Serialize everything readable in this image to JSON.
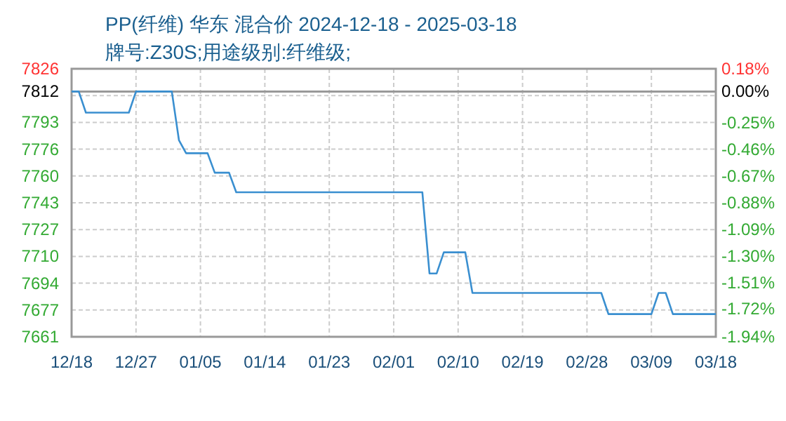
{
  "chart_data": {
    "type": "line",
    "title": "PP(纤维) 华东 混合价 2024-12-18 - 2025-03-18",
    "subtitle": "牌号:Z30S;用途级别:纤维级;",
    "x": [
      "2024-12-18",
      "2024-12-19",
      "2024-12-20",
      "2024-12-26",
      "2024-12-27",
      "2025-01-01",
      "2025-01-02",
      "2025-01-03",
      "2025-01-06",
      "2025-01-07",
      "2025-01-09",
      "2025-01-10",
      "2025-02-05",
      "2025-02-06",
      "2025-02-07",
      "2025-02-08",
      "2025-02-11",
      "2025-02-12",
      "2025-03-02",
      "2025-03-03",
      "2025-03-09",
      "2025-03-10",
      "2025-03-11",
      "2025-03-12",
      "2025-03-18"
    ],
    "series": [
      {
        "color": "#3a8fd0",
        "values": [
          7812,
          7812,
          7799,
          7799,
          7812,
          7812,
          7782,
          7774,
          7774,
          7762,
          7762,
          7750,
          7750,
          7700,
          7700,
          7713,
          7713,
          7688,
          7688,
          7675,
          7675,
          7688,
          7688,
          7675,
          7675
        ]
      }
    ],
    "xlim": [
      "2024-12-18",
      "2025-03-18"
    ],
    "xticks": [
      {
        "value": "2024-12-18",
        "label": "12/18"
      },
      {
        "value": "2024-12-27",
        "label": "12/27"
      },
      {
        "value": "2025-01-05",
        "label": "01/05"
      },
      {
        "value": "2025-01-14",
        "label": "01/14"
      },
      {
        "value": "2025-01-23",
        "label": "01/23"
      },
      {
        "value": "2025-02-01",
        "label": "02/01"
      },
      {
        "value": "2025-02-10",
        "label": "02/10"
      },
      {
        "value": "2025-02-19",
        "label": "02/19"
      },
      {
        "value": "2025-02-28",
        "label": "02/28"
      },
      {
        "value": "2025-03-09",
        "label": "03/09"
      },
      {
        "value": "2025-03-18",
        "label": "03/18"
      }
    ],
    "ylim": [
      7661,
      7826
    ],
    "yticks": [
      7661,
      {
        "value": 7677.5,
        "label": "7677"
      },
      7694,
      {
        "value": 7710.5,
        "label": "7710"
      },
      7727,
      {
        "value": 7743.5,
        "label": "7743"
      },
      7760,
      {
        "value": 7776.5,
        "label": "7776"
      },
      7793,
      {
        "value": 7809.5,
        "label": null
      },
      7826,
      7812
    ],
    "y2lim": [
      -1.94,
      0.18
    ],
    "y2ticks": [
      {
        "value": -1.94,
        "label": "-1.94%"
      },
      {
        "value": -1.72,
        "label": "-1.72%"
      },
      {
        "value": -1.51,
        "label": "-1.51%"
      },
      {
        "value": -1.3,
        "label": "-1.30%"
      },
      {
        "value": -1.09,
        "label": "-1.09%"
      },
      {
        "value": -0.88,
        "label": "-0.88%"
      },
      {
        "value": -0.67,
        "label": "-0.67%"
      },
      {
        "value": -0.46,
        "label": "-0.46%"
      },
      {
        "value": -0.25,
        "label": "-0.25%"
      },
      {
        "value": 0,
        "label": "0.00%"
      },
      {
        "value": 0.18,
        "label": "0.18%"
      }
    ],
    "ref_lines": [
      {
        "axis": "y",
        "value": 7812,
        "color": "#999999"
      }
    ],
    "grid": true,
    "line_style": "solid"
  }
}
